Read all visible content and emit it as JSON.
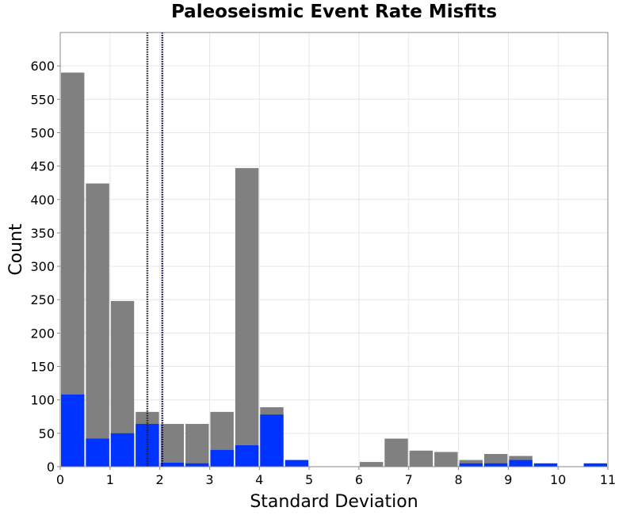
{
  "chart_data": {
    "type": "bar",
    "title": "Paleoseismic Event Rate Misfits",
    "xlabel": "Standard Deviation",
    "ylabel": "Count",
    "xlim": [
      0,
      11
    ],
    "ylim": [
      0,
      650
    ],
    "xticks": [
      0,
      1,
      2,
      3,
      4,
      5,
      6,
      7,
      8,
      9,
      10,
      11
    ],
    "yticks": [
      0,
      50,
      100,
      150,
      200,
      250,
      300,
      350,
      400,
      450,
      500,
      550,
      600
    ],
    "bin_width": 0.5,
    "grid": true,
    "legend": "none",
    "bins": [
      0.25,
      0.75,
      1.25,
      1.75,
      2.25,
      2.75,
      3.25,
      3.75,
      4.25,
      4.75,
      5.25,
      5.75,
      6.25,
      6.75,
      7.25,
      7.75,
      8.25,
      8.75,
      9.25,
      9.75,
      10.25,
      10.75
    ],
    "series": [
      {
        "color": "#808080",
        "values": [
          590,
          424,
          248,
          82,
          64,
          64,
          82,
          447,
          89,
          0,
          0,
          0,
          7,
          42,
          24,
          22,
          10,
          19,
          16,
          0,
          0,
          0
        ]
      },
      {
        "color": "#0033ff",
        "values": [
          108,
          42,
          50,
          64,
          6,
          5,
          25,
          32,
          78,
          10,
          0,
          0,
          0,
          0,
          0,
          0,
          5,
          5,
          10,
          5,
          0,
          5
        ]
      }
    ],
    "vlines": [
      {
        "x": 1.75,
        "color": "#222222",
        "style": "dotted"
      },
      {
        "x": 2.05,
        "color": "#000066",
        "style": "dotted"
      }
    ]
  }
}
